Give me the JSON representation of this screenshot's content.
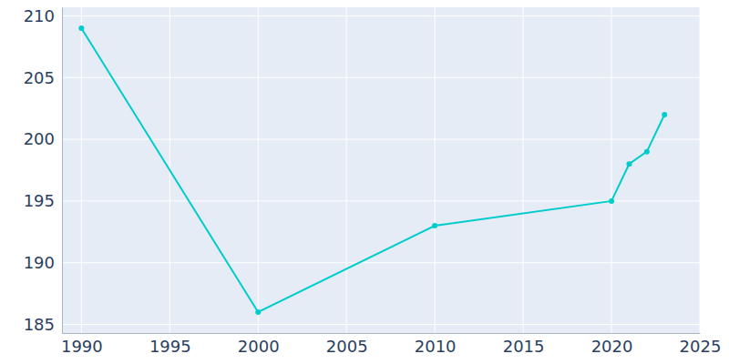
{
  "chart_data": {
    "type": "line",
    "x": [
      1990,
      2000,
      2010,
      2020,
      2021,
      2022,
      2023
    ],
    "values": [
      209,
      186,
      193,
      195,
      198,
      199,
      202
    ],
    "color": "#00cccc",
    "marker": "circle",
    "xlim": [
      1988.9,
      2025
    ],
    "ylim": [
      184.3,
      210.7
    ],
    "xticks": [
      1990,
      1995,
      2000,
      2005,
      2010,
      2015,
      2020,
      2025
    ],
    "yticks": [
      185,
      190,
      195,
      200,
      205,
      210
    ],
    "grid": true
  }
}
